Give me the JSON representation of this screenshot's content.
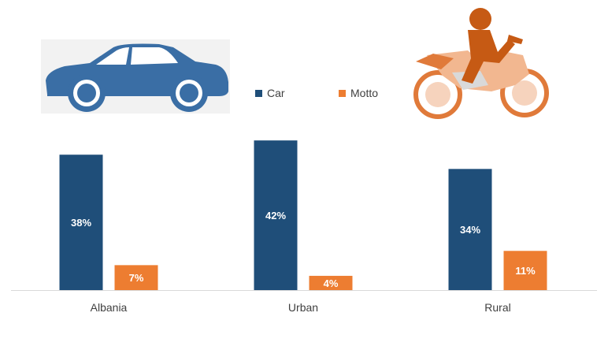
{
  "chart_data": {
    "type": "bar",
    "categories": [
      "Albania",
      "Urban",
      "Rural"
    ],
    "series": [
      {
        "name": "Car",
        "color": "#1f4e79",
        "values": [
          38,
          42,
          34
        ],
        "labels": [
          "38%",
          "42%",
          "34%"
        ]
      },
      {
        "name": "Motto",
        "color": "#ed7d31",
        "values": [
          7,
          4,
          11
        ],
        "labels": [
          "7%",
          "4%",
          "11%"
        ]
      }
    ],
    "ylim": [
      0,
      50
    ],
    "grid": false,
    "legend_position": "top-center",
    "title": "",
    "xlabel": "",
    "ylabel": ""
  },
  "illustrations": {
    "car": {
      "icon": "car-icon",
      "color": "#3a6ea5",
      "background": "#f2f2f2"
    },
    "motorcycle": {
      "icon": "motorcycle-icon",
      "color": "#e07a3a"
    }
  }
}
